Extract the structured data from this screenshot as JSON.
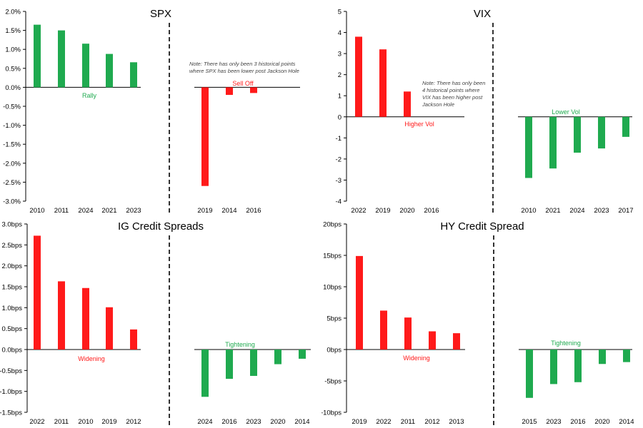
{
  "colors": {
    "positive_green": "#1faa4f",
    "negative_red": "#ff1a1a",
    "axis": "#000000",
    "divider": "#000000"
  },
  "chart_data": [
    {
      "type": "bar",
      "title": "SPX",
      "ylim": [
        -3.0,
        2.0
      ],
      "yticks": [
        2.0,
        1.5,
        1.0,
        0.5,
        0.0,
        -0.5,
        -1.0,
        -1.5,
        -2.0,
        -2.5,
        -3.0
      ],
      "ytick_labels": [
        "2.0%",
        "1.5%",
        "1.0%",
        "0.5%",
        "0.0%",
        "-0.5%",
        "-1.0%",
        "-1.5%",
        "-2.0%",
        "-2.5%",
        "-3.0%"
      ],
      "left_group": {
        "categories": [
          "2010",
          "2011",
          "2024",
          "2021",
          "2023"
        ],
        "values": [
          1.65,
          1.5,
          1.15,
          0.88,
          0.66
        ],
        "color": "green",
        "label": "Rally"
      },
      "right_group": {
        "categories": [
          "2019",
          "2014",
          "2016"
        ],
        "values": [
          -2.6,
          -0.2,
          -0.15
        ],
        "color": "red",
        "label": "Sell Off"
      },
      "note": [
        "Note: There has only been 3 historical points",
        "where SPX has been lower post Jackson Hole"
      ]
    },
    {
      "type": "bar",
      "title": "VIX",
      "ylim": [
        -4,
        5
      ],
      "yticks": [
        5,
        4,
        3,
        2,
        1,
        0,
        -1,
        -2,
        -3,
        -4
      ],
      "ytick_labels": [
        "5",
        "4",
        "3",
        "2",
        "1",
        "0",
        "-1",
        "-2",
        "-3",
        "-4"
      ],
      "left_group": {
        "categories": [
          "2022",
          "2019",
          "2020",
          "2016"
        ],
        "values": [
          3.8,
          3.2,
          1.2,
          0
        ],
        "color": "red",
        "label": "Higher Vol"
      },
      "right_group": {
        "categories": [
          "2010",
          "2021",
          "2024",
          "2023",
          "2017"
        ],
        "values": [
          -2.9,
          -2.45,
          -1.7,
          -1.5,
          -0.95
        ],
        "color": "green",
        "label": "Lower Vol"
      },
      "note": [
        "Note: There has only been",
        "4 historical points where",
        "VIX has been higher post",
        "Jackson Hole"
      ]
    },
    {
      "type": "bar",
      "title": "IG Credit Spreads",
      "ylim": [
        -1.5,
        3.0
      ],
      "yticks": [
        3.0,
        2.5,
        2.0,
        1.5,
        1.0,
        0.5,
        0.0,
        -0.5,
        -1.0,
        -1.5
      ],
      "ytick_labels": [
        "3.0bps",
        "2.5bps",
        "2.0bps",
        "1.5bps",
        "1.0bps",
        "0.5bps",
        "0.0bps",
        "-0.5bps",
        "-1.0bps",
        "-1.5bps"
      ],
      "left_group": {
        "categories": [
          "2022",
          "2011",
          "2010",
          "2019",
          "2012"
        ],
        "values": [
          2.72,
          1.63,
          1.47,
          1.01,
          0.48
        ],
        "color": "red",
        "label": "Widening"
      },
      "right_group": {
        "categories": [
          "2024",
          "2016",
          "2023",
          "2020",
          "2014"
        ],
        "values": [
          -1.13,
          -0.7,
          -0.63,
          -0.35,
          -0.22
        ],
        "color": "green",
        "label": "Tightening"
      },
      "note": []
    },
    {
      "type": "bar",
      "title": "HY Credit Spread",
      "ylim": [
        -10,
        20
      ],
      "yticks": [
        20,
        15,
        10,
        5,
        0,
        -5,
        -10
      ],
      "ytick_labels": [
        "20bps",
        "15bps",
        "10bps",
        "5bps",
        "0bps",
        "-5bps",
        "-10bps"
      ],
      "left_group": {
        "categories": [
          "2019",
          "2022",
          "2011",
          "2012",
          "2013"
        ],
        "values": [
          14.9,
          6.2,
          5.1,
          2.9,
          2.6
        ],
        "color": "red",
        "label": "Widening"
      },
      "right_group": {
        "categories": [
          "2015",
          "2023",
          "2016",
          "2020",
          "2014"
        ],
        "values": [
          -7.7,
          -5.5,
          -5.2,
          -2.3,
          -2.0
        ],
        "color": "green",
        "label": "Tightening"
      },
      "note": []
    }
  ]
}
